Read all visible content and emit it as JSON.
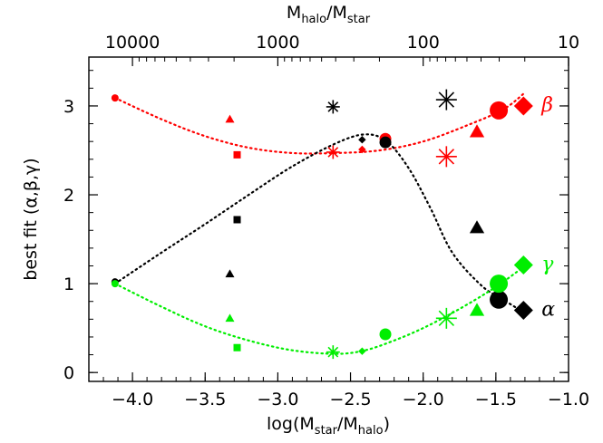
{
  "chart_data": {
    "type": "scatter",
    "xlabel": "log(M_star/M_halo)",
    "ylabel": "best fit (α,β,γ)",
    "top_axis_label": "M_halo/M_star",
    "xlim": [
      -4.3,
      -1.0
    ],
    "ylim": [
      -0.1,
      3.55
    ],
    "x_ticks": [
      -4.0,
      -3.5,
      -3.0,
      -2.5,
      -2.0,
      -1.5,
      -1.0
    ],
    "x_tick_labels": [
      "−4.0",
      "−3.5",
      "−3.0",
      "−2.5",
      "−2.0",
      "−1.5",
      "−1.0"
    ],
    "y_ticks": [
      0,
      1,
      2,
      3
    ],
    "y_tick_labels": [
      "0",
      "1",
      "2",
      "3"
    ],
    "top_ticks": [
      10000,
      1000,
      100,
      10
    ],
    "top_tick_labels": [
      "10000",
      "1000",
      "100",
      "10"
    ],
    "grid": false,
    "series": [
      {
        "name": "β",
        "color": "#ff0000",
        "points": [
          {
            "x": -4.12,
            "y": 3.09,
            "marker": "circle",
            "size": "small"
          },
          {
            "x": -3.33,
            "y": 2.85,
            "marker": "triangle",
            "size": "small"
          },
          {
            "x": -3.28,
            "y": 2.45,
            "marker": "square",
            "size": "small"
          },
          {
            "x": -2.62,
            "y": 2.48,
            "marker": "asterisk",
            "size": "medium"
          },
          {
            "x": -2.42,
            "y": 2.51,
            "marker": "diamond",
            "size": "small"
          },
          {
            "x": -2.26,
            "y": 2.63,
            "marker": "circle",
            "size": "medium"
          },
          {
            "x": -1.84,
            "y": 2.43,
            "marker": "asterisk",
            "size": "large"
          },
          {
            "x": -1.63,
            "y": 2.71,
            "marker": "triangle",
            "size": "medium"
          },
          {
            "x": -1.48,
            "y": 2.95,
            "marker": "circle",
            "size": "large"
          },
          {
            "x": -1.31,
            "y": 3.0,
            "marker": "diamond",
            "size": "large"
          }
        ],
        "fit": [
          [
            -4.12,
            3.09
          ],
          [
            -3.8,
            2.85
          ],
          [
            -3.5,
            2.66
          ],
          [
            -3.2,
            2.53
          ],
          [
            -2.9,
            2.47
          ],
          [
            -2.6,
            2.47
          ],
          [
            -2.3,
            2.5
          ],
          [
            -2.0,
            2.6
          ],
          [
            -1.7,
            2.78
          ],
          [
            -1.45,
            2.96
          ],
          [
            -1.3,
            3.15
          ]
        ]
      },
      {
        "name": "α",
        "color": "#000000",
        "points": [
          {
            "x": -4.12,
            "y": 1.02,
            "marker": "circle",
            "size": "small"
          },
          {
            "x": -3.33,
            "y": 1.11,
            "marker": "triangle",
            "size": "small"
          },
          {
            "x": -3.28,
            "y": 1.72,
            "marker": "square",
            "size": "small"
          },
          {
            "x": -2.62,
            "y": 2.99,
            "marker": "asterisk",
            "size": "medium"
          },
          {
            "x": -2.42,
            "y": 2.62,
            "marker": "diamond",
            "size": "small"
          },
          {
            "x": -2.26,
            "y": 2.59,
            "marker": "circle",
            "size": "medium"
          },
          {
            "x": -1.84,
            "y": 3.07,
            "marker": "asterisk",
            "size": "large"
          },
          {
            "x": -1.63,
            "y": 1.63,
            "marker": "triangle",
            "size": "medium"
          },
          {
            "x": -1.48,
            "y": 0.82,
            "marker": "circle",
            "size": "large"
          },
          {
            "x": -1.31,
            "y": 0.7,
            "marker": "diamond",
            "size": "large"
          }
        ],
        "fit": [
          [
            -4.12,
            1.0
          ],
          [
            -3.8,
            1.35
          ],
          [
            -3.5,
            1.67
          ],
          [
            -3.2,
            2.0
          ],
          [
            -2.9,
            2.32
          ],
          [
            -2.6,
            2.58
          ],
          [
            -2.4,
            2.68
          ],
          [
            -2.25,
            2.6
          ],
          [
            -2.1,
            2.3
          ],
          [
            -1.95,
            1.85
          ],
          [
            -1.8,
            1.35
          ],
          [
            -1.6,
            0.98
          ],
          [
            -1.45,
            0.82
          ],
          [
            -1.3,
            0.67
          ]
        ]
      },
      {
        "name": "γ",
        "color": "#00ee00",
        "points": [
          {
            "x": -4.12,
            "y": 1.0,
            "marker": "circle",
            "size": "small"
          },
          {
            "x": -3.33,
            "y": 0.61,
            "marker": "triangle",
            "size": "small"
          },
          {
            "x": -3.28,
            "y": 0.28,
            "marker": "square",
            "size": "small"
          },
          {
            "x": -2.62,
            "y": 0.23,
            "marker": "asterisk",
            "size": "medium"
          },
          {
            "x": -2.42,
            "y": 0.24,
            "marker": "diamond",
            "size": "small"
          },
          {
            "x": -2.26,
            "y": 0.43,
            "marker": "circle",
            "size": "medium"
          },
          {
            "x": -1.84,
            "y": 0.61,
            "marker": "asterisk",
            "size": "large"
          },
          {
            "x": -1.63,
            "y": 0.7,
            "marker": "triangle",
            "size": "medium"
          },
          {
            "x": -1.48,
            "y": 1.0,
            "marker": "circle",
            "size": "large"
          },
          {
            "x": -1.31,
            "y": 1.21,
            "marker": "diamond",
            "size": "large"
          }
        ],
        "fit": [
          [
            -4.12,
            1.0
          ],
          [
            -3.8,
            0.74
          ],
          [
            -3.5,
            0.52
          ],
          [
            -3.2,
            0.36
          ],
          [
            -2.9,
            0.25
          ],
          [
            -2.6,
            0.21
          ],
          [
            -2.4,
            0.25
          ],
          [
            -2.2,
            0.36
          ],
          [
            -2.0,
            0.5
          ],
          [
            -1.8,
            0.67
          ],
          [
            -1.6,
            0.86
          ],
          [
            -1.45,
            1.02
          ],
          [
            -1.3,
            1.2
          ]
        ]
      }
    ]
  }
}
